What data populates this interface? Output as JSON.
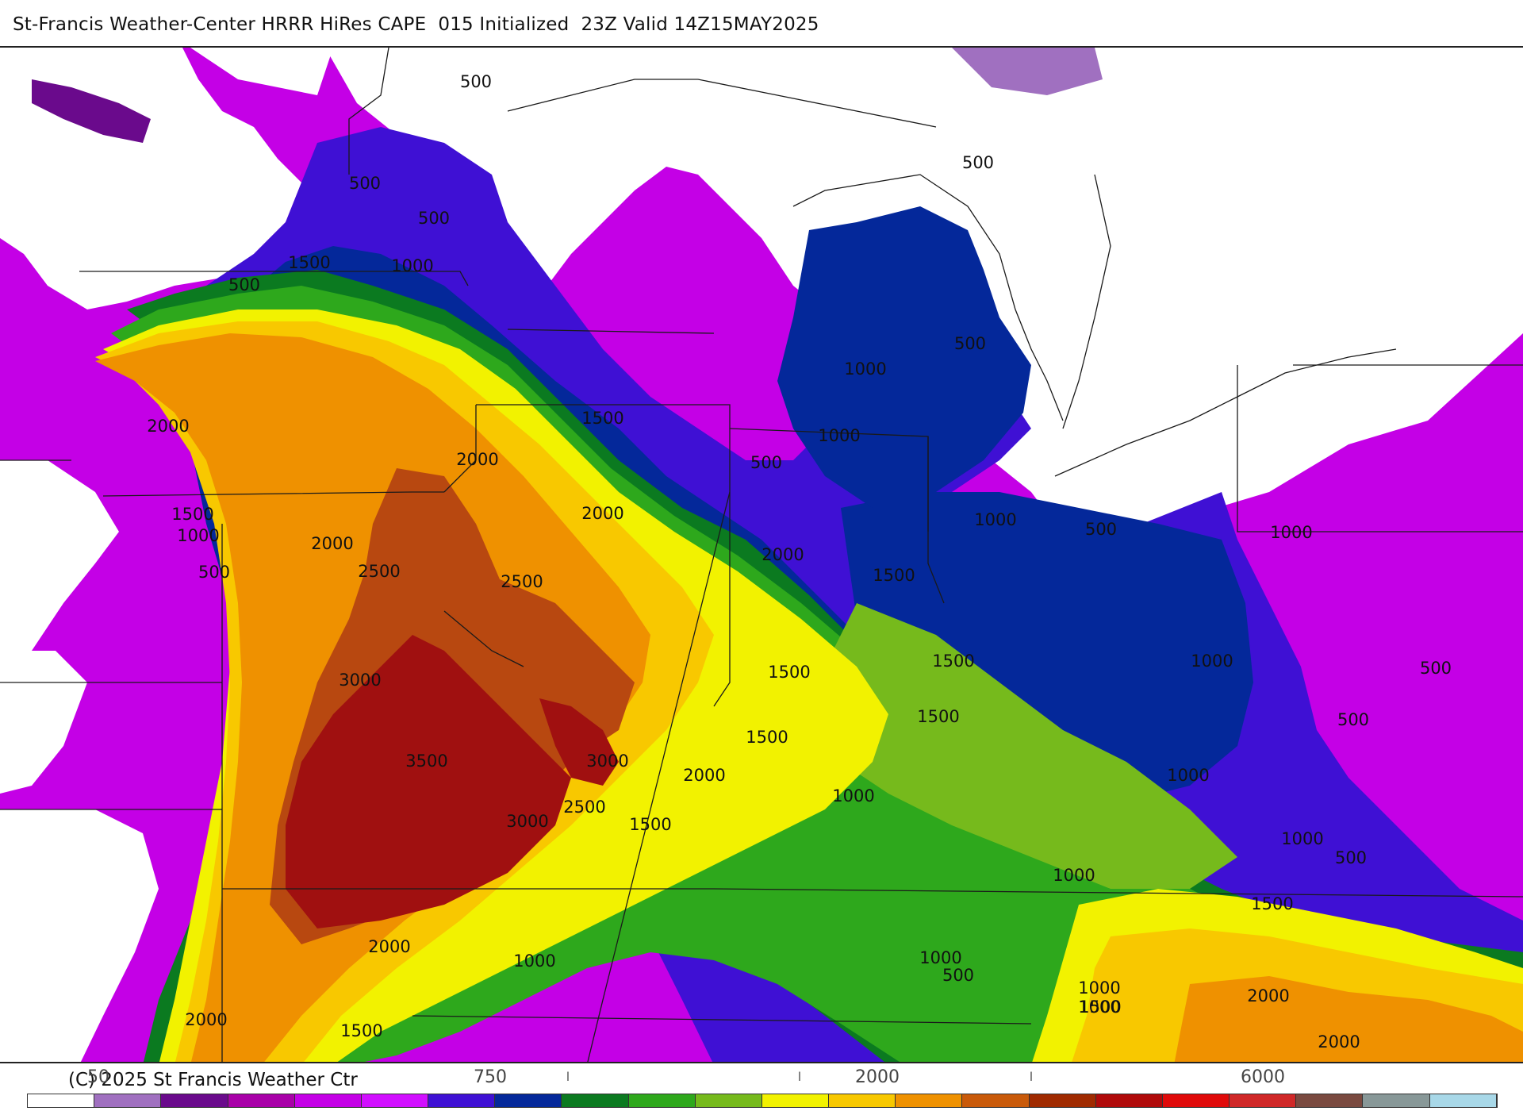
{
  "header": {
    "title": "St-Francis Weather-Center HRRR HiRes CAPE  015 Initialized  23Z Valid 14Z15MAY2025"
  },
  "footer": {
    "copyright": "(C) 2025 St Francis Weather Ctr"
  },
  "colorbar": {
    "visible_labels": [
      "50",
      "750",
      "2000",
      "6000"
    ],
    "tick_marks": [
      "I",
      "I",
      "I"
    ],
    "colors": [
      "#ffffff",
      "#a070c0",
      "#6a0a8c",
      "#a800a8",
      "#c400e6",
      "#d10fff",
      "#3f10d4",
      "#04289a",
      "#0b7a20",
      "#2ea81c",
      "#76ba1c",
      "#f2f200",
      "#f8c800",
      "#ef9100",
      "#c95a0a",
      "#a02a00",
      "#b00a0a",
      "#e00a0a",
      "#d02828",
      "#7a4a40",
      "#889898",
      "#a8d8e8"
    ]
  },
  "map": {
    "palette": {
      "lt_purple": "#a070c0",
      "dk_purple": "#6a0a8c",
      "magenta": "#c400e6",
      "blue_violet": "#3f10d4",
      "navy": "#04289a",
      "dk_green": "#0b7a20",
      "green": "#2ea81c",
      "yellow_green": "#76ba1c",
      "yellow": "#f2f200",
      "gold": "#f8c800",
      "orange": "#ef9100",
      "brown": "#b84810",
      "dk_red": "#a01010"
    },
    "contour_labels": [
      {
        "text": "500"
      },
      {
        "text": "500"
      },
      {
        "text": "500"
      },
      {
        "text": "1500"
      },
      {
        "text": "1000"
      },
      {
        "text": "500"
      },
      {
        "text": "500"
      },
      {
        "text": "500"
      },
      {
        "text": "2000"
      },
      {
        "text": "1000"
      },
      {
        "text": "1500"
      },
      {
        "text": "2000"
      },
      {
        "text": "1000"
      },
      {
        "text": "500"
      },
      {
        "text": "1500"
      },
      {
        "text": "1000"
      },
      {
        "text": "1000"
      },
      {
        "text": "500"
      },
      {
        "text": "1000"
      },
      {
        "text": "500"
      },
      {
        "text": "2000"
      },
      {
        "text": "1500"
      },
      {
        "text": "2000"
      },
      {
        "text": "2500"
      },
      {
        "text": "2500"
      },
      {
        "text": "2000"
      },
      {
        "text": "1500"
      },
      {
        "text": "3000"
      },
      {
        "text": "1500"
      },
      {
        "text": "1500"
      },
      {
        "text": "1500"
      },
      {
        "text": "1000"
      },
      {
        "text": "500"
      },
      {
        "text": "3500"
      },
      {
        "text": "3000"
      },
      {
        "text": "2000"
      },
      {
        "text": "2500"
      },
      {
        "text": "3000"
      },
      {
        "text": "1500"
      },
      {
        "text": "1000"
      },
      {
        "text": "1000"
      },
      {
        "text": "500"
      },
      {
        "text": "1000"
      },
      {
        "text": "1000"
      },
      {
        "text": "500"
      },
      {
        "text": "1500"
      },
      {
        "text": "2000"
      },
      {
        "text": "1000"
      },
      {
        "text": "500"
      },
      {
        "text": "1000"
      },
      {
        "text": "1000"
      },
      {
        "text": "2000"
      },
      {
        "text": "2000"
      },
      {
        "text": "1500"
      },
      {
        "text": "1500"
      },
      {
        "text": "2000"
      },
      {
        "text": "1000"
      }
    ]
  }
}
